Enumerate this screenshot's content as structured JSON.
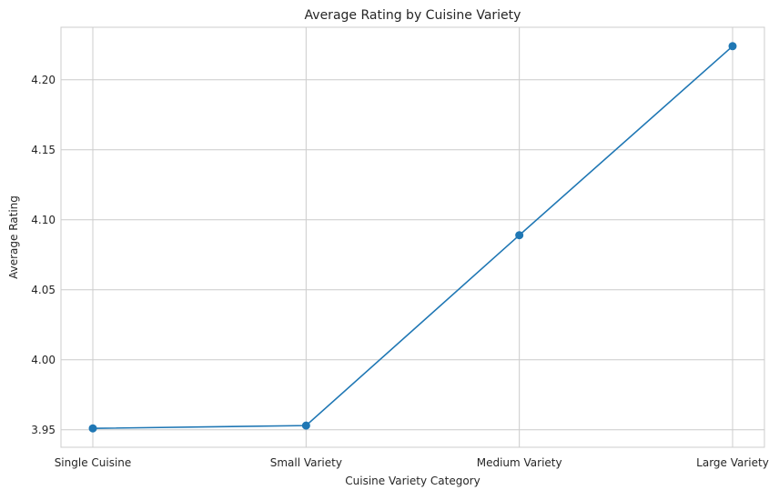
{
  "chart_data": {
    "type": "line",
    "title": "Average Rating by Cuisine Variety",
    "xlabel": "Cuisine Variety Category",
    "ylabel": "Average Rating",
    "categories": [
      "Single Cuisine",
      "Small Variety",
      "Medium Variety",
      "Large Variety"
    ],
    "series": [
      {
        "values": [
          3.951,
          3.953,
          4.089,
          4.224
        ]
      }
    ],
    "yticks": [
      "3.95",
      "4.00",
      "4.05",
      "4.10",
      "4.15",
      "4.20"
    ],
    "ylim": [
      3.9375,
      4.2375
    ],
    "grid": true,
    "legend": "none",
    "colors": {
      "line": "#1f77b4",
      "grid": "#cccccc",
      "text": "#262626",
      "background": "#ffffff"
    }
  }
}
